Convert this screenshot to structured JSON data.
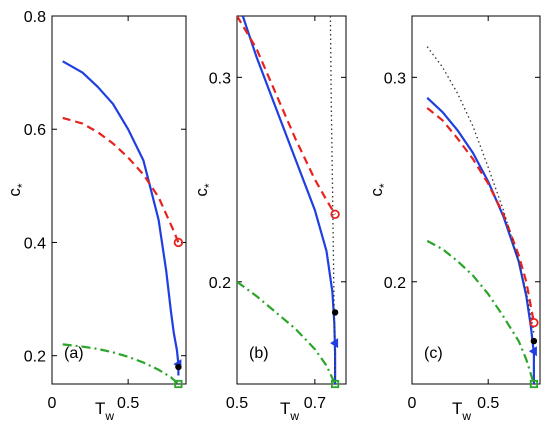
{
  "chart_data": [
    {
      "type": "line",
      "panel_label": "(a)",
      "xlabel": "T",
      "xlabel_sub": "w",
      "ylabel": "c",
      "ylabel_sub": "*",
      "xlim": [
        0,
        0.88
      ],
      "ylim": [
        0.15,
        0.8
      ],
      "xticks": [
        0,
        0.5
      ],
      "xtick_labels": [
        "0",
        "0.5"
      ],
      "yticks": [
        0.2,
        0.4,
        0.6,
        0.8
      ],
      "ytick_labels": [
        "0.2",
        "0.4",
        "0.6",
        "0.8"
      ],
      "series": [
        {
          "style": "solid",
          "color": "#1f3fe0",
          "x": [
            0.07,
            0.2,
            0.3,
            0.4,
            0.5,
            0.6,
            0.7,
            0.75,
            0.78,
            0.8,
            0.82,
            0.83,
            0.83
          ],
          "y": [
            0.72,
            0.7,
            0.675,
            0.645,
            0.6,
            0.545,
            0.44,
            0.35,
            0.28,
            0.24,
            0.21,
            0.185,
            0.165
          ]
        },
        {
          "style": "dashed",
          "color": "#e8231f",
          "x": [
            0.07,
            0.2,
            0.3,
            0.4,
            0.5,
            0.6,
            0.7,
            0.75,
            0.8,
            0.83
          ],
          "y": [
            0.62,
            0.61,
            0.595,
            0.575,
            0.55,
            0.52,
            0.48,
            0.45,
            0.42,
            0.4
          ]
        },
        {
          "style": "dashdot",
          "color": "#2aa52a",
          "x": [
            0.07,
            0.2,
            0.3,
            0.4,
            0.5,
            0.6,
            0.7,
            0.78,
            0.83
          ],
          "y": [
            0.22,
            0.216,
            0.212,
            0.206,
            0.198,
            0.188,
            0.175,
            0.162,
            0.15
          ]
        }
      ],
      "markers": [
        {
          "shape": "circle-open",
          "color": "#e8231f",
          "x": 0.83,
          "y": 0.4
        },
        {
          "shape": "triangle-left",
          "color": "#1f3fe0",
          "x": 0.83,
          "y": 0.185
        },
        {
          "shape": "dot",
          "color": "#000000",
          "x": 0.83,
          "y": 0.18
        },
        {
          "shape": "square-open",
          "color": "#2aa52a",
          "x": 0.83,
          "y": 0.15
        }
      ]
    },
    {
      "type": "line",
      "panel_label": "(b)",
      "xlabel": "T",
      "xlabel_sub": "w",
      "ylabel": "c",
      "ylabel_sub": "*",
      "xlim": [
        0.5,
        0.78
      ],
      "ylim": [
        0.15,
        0.33
      ],
      "xticks": [
        0.5,
        0.7
      ],
      "xtick_labels": [
        "0.5",
        "0.7"
      ],
      "yticks": [
        0.2,
        0.3
      ],
      "ytick_labels": [
        "0.2",
        "0.3"
      ],
      "series": [
        {
          "style": "solid",
          "color": "#1f3fe0",
          "x": [
            0.515,
            0.55,
            0.6,
            0.65,
            0.7,
            0.73,
            0.745,
            0.75,
            0.752,
            0.752
          ],
          "y": [
            0.33,
            0.31,
            0.285,
            0.26,
            0.235,
            0.215,
            0.195,
            0.18,
            0.165,
            0.15
          ]
        },
        {
          "style": "dashed",
          "color": "#e8231f",
          "x": [
            0.5,
            0.55,
            0.6,
            0.65,
            0.7,
            0.73,
            0.752
          ],
          "y": [
            0.33,
            0.314,
            0.292,
            0.27,
            0.25,
            0.24,
            0.233
          ]
        },
        {
          "style": "dotted",
          "color": "#333333",
          "x": [
            0.74,
            0.742,
            0.745,
            0.748,
            0.75,
            0.752
          ],
          "y": [
            0.33,
            0.29,
            0.25,
            0.21,
            0.18,
            0.15
          ]
        },
        {
          "style": "dashdot",
          "color": "#2aa52a",
          "x": [
            0.5,
            0.55,
            0.6,
            0.65,
            0.7,
            0.73,
            0.752
          ],
          "y": [
            0.2,
            0.193,
            0.185,
            0.177,
            0.167,
            0.159,
            0.15
          ]
        }
      ],
      "markers": [
        {
          "shape": "circle-open",
          "color": "#e8231f",
          "x": 0.752,
          "y": 0.233
        },
        {
          "shape": "dot",
          "color": "#000000",
          "x": 0.752,
          "y": 0.185
        },
        {
          "shape": "triangle-left",
          "color": "#1f3fe0",
          "x": 0.752,
          "y": 0.17
        },
        {
          "shape": "square-open",
          "color": "#2aa52a",
          "x": 0.752,
          "y": 0.15
        }
      ]
    },
    {
      "type": "line",
      "panel_label": "(c)",
      "xlabel": "T",
      "xlabel_sub": "w",
      "ylabel": "c",
      "ylabel_sub": "*",
      "xlim": [
        0,
        0.84
      ],
      "ylim": [
        0.15,
        0.33
      ],
      "xticks": [
        0,
        0.5
      ],
      "xtick_labels": [
        "0",
        "0.5"
      ],
      "yticks": [
        0.2,
        0.3
      ],
      "ytick_labels": [
        "0.2",
        "0.3"
      ],
      "series": [
        {
          "style": "solid",
          "color": "#1f3fe0",
          "x": [
            0.1,
            0.2,
            0.3,
            0.4,
            0.5,
            0.6,
            0.7,
            0.75,
            0.78,
            0.8,
            0.8
          ],
          "y": [
            0.29,
            0.283,
            0.274,
            0.263,
            0.249,
            0.232,
            0.21,
            0.193,
            0.178,
            0.165,
            0.15
          ]
        },
        {
          "style": "dashed",
          "color": "#e8231f",
          "x": [
            0.1,
            0.2,
            0.3,
            0.4,
            0.5,
            0.6,
            0.7,
            0.75,
            0.8
          ],
          "y": [
            0.285,
            0.279,
            0.27,
            0.26,
            0.248,
            0.233,
            0.213,
            0.2,
            0.18
          ]
        },
        {
          "style": "dotted",
          "color": "#333333",
          "x": [
            0.1,
            0.2,
            0.3,
            0.4,
            0.5,
            0.6,
            0.7,
            0.75,
            0.8
          ],
          "y": [
            0.315,
            0.305,
            0.292,
            0.276,
            0.256,
            0.235,
            0.21,
            0.195,
            0.175
          ]
        },
        {
          "style": "dashdot",
          "color": "#2aa52a",
          "x": [
            0.1,
            0.2,
            0.3,
            0.4,
            0.5,
            0.6,
            0.7,
            0.75,
            0.8
          ],
          "y": [
            0.22,
            0.216,
            0.21,
            0.203,
            0.194,
            0.183,
            0.171,
            0.162,
            0.15
          ]
        }
      ],
      "markers": [
        {
          "shape": "circle-open",
          "color": "#e8231f",
          "x": 0.8,
          "y": 0.18
        },
        {
          "shape": "dot",
          "color": "#000000",
          "x": 0.8,
          "y": 0.171
        },
        {
          "shape": "triangle-left",
          "color": "#1f3fe0",
          "x": 0.8,
          "y": 0.166
        },
        {
          "shape": "square-open",
          "color": "#2aa52a",
          "x": 0.8,
          "y": 0.15
        }
      ]
    }
  ]
}
